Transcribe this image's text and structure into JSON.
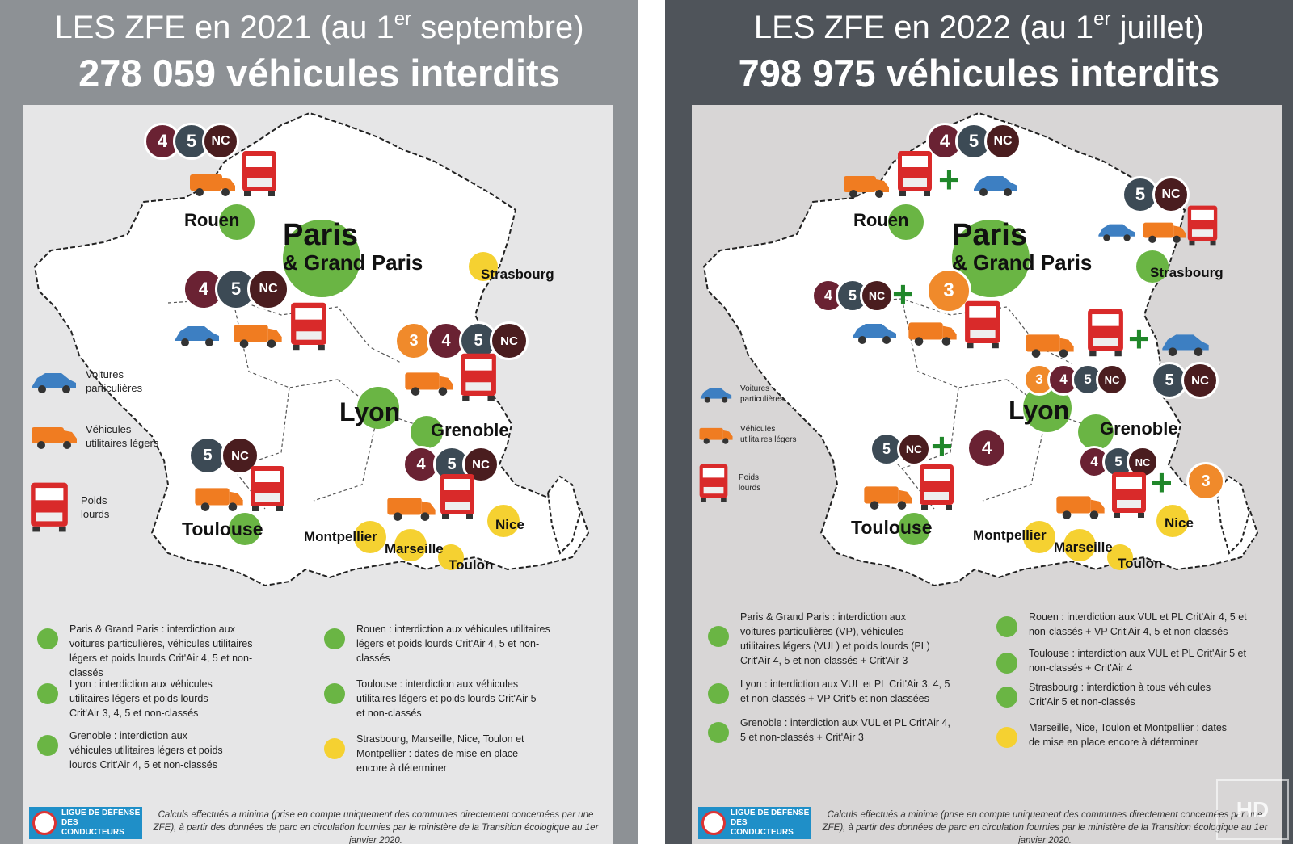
{
  "left": {
    "title_prefix": "LES ZFE en 2021 (au 1",
    "title_sup": "er",
    "title_suffix": " septembre)",
    "subtitle": "278 059 véhicules interdits",
    "cities": {
      "rouen": "Rouen",
      "paris": "Paris",
      "grand_paris": "& Grand Paris",
      "strasbourg": "Strasbourg",
      "lyon": "Lyon",
      "grenoble": "Grenoble",
      "toulouse": "Toulouse",
      "montpellier": "Montpellier",
      "marseille": "Marseille",
      "nice": "Nice",
      "toulon": "Toulon"
    },
    "vehicle_legend": {
      "cars": "Voitures particulières",
      "vans": "Véhicules utilitaires légers",
      "trucks": "Poids lourds"
    },
    "legend": [
      {
        "text": "Paris & Grand Paris : interdiction aux voitures particulières, véhicules utilitaires légers et poids lourds Crit'Air 4, 5 et non-classés",
        "color": "#6ab544"
      },
      {
        "text": "Rouen : interdiction aux véhicules utilitaires légers et poids lourds Crit'Air 4, 5 et non-classés",
        "color": "#6ab544"
      },
      {
        "text": "Lyon : interdiction aux véhicules utilitaires légers et poids lourds Crit'Air 3, 4, 5 et non-classés",
        "color": "#6ab544"
      },
      {
        "text": "Toulouse : interdiction aux véhicules utilitaires légers et poids lourds Crit'Air 5 et non-classés",
        "color": "#6ab544"
      },
      {
        "text": "Grenoble : interdiction aux véhicules utilitaires légers et poids lourds Crit'Air 4, 5 et non-classés",
        "color": "#6ab544"
      },
      {
        "text": "Strasbourg, Marseille, Nice, Toulon et Montpellier : dates de mise en place encore à déterminer",
        "color": "#f5d131"
      }
    ],
    "logo": "Ligue de défense des conducteurs",
    "footnote": "Calculs effectués a minima (prise en compte uniquement des communes directement concernées par une ZFE), à partir des données de parc en circulation fournies par le ministère de la Transition écologique au 1er janvier 2020."
  },
  "right": {
    "title_prefix": "LES ZFE en 2022 (au 1",
    "title_sup": "er",
    "title_suffix": " juillet)",
    "subtitle": "798 975 véhicules interdits",
    "cities": {
      "rouen": "Rouen",
      "paris": "Paris",
      "grand_paris": "& Grand Paris",
      "strasbourg": "Strasbourg",
      "lyon": "Lyon",
      "grenoble": "Grenoble",
      "toulouse": "Toulouse",
      "montpellier": "Montpellier",
      "marseille": "Marseille",
      "nice": "Nice",
      "toulon": "Toulon"
    },
    "vehicle_legend": {
      "cars": "Voitures particulières",
      "vans": "Véhicules utilitaires légers",
      "trucks": "Poids lourds"
    },
    "legend": [
      {
        "text": "Paris & Grand Paris : interdiction aux voitures particulières (VP), véhicules utilitaires légers (VUL) et poids lourds (PL) Crit'Air 4, 5 et non-classés + Crit'Air 3",
        "color": "#6ab544"
      },
      {
        "text": "Rouen : interdiction aux VUL et PL Crit'Air 4, 5 et non-classés + VP Crit'Air 4, 5 et non-classés",
        "color": "#6ab544"
      },
      {
        "text": "Lyon : interdiction aux VUL et PL Crit'Air 3, 4, 5 et non-classés + VP Crit'5 et non classées",
        "color": "#6ab544"
      },
      {
        "text": "Toulouse : interdiction aux VUL et PL Crit'Air 5 et non-classés + Crit'Air 4",
        "color": "#6ab544"
      },
      {
        "text": "Grenoble : interdiction aux VUL et PL Crit'Air 4, 5 et non-classés + Crit'Air 3",
        "color": "#6ab544"
      },
      {
        "text": "Strasbourg : interdiction à tous véhicules Crit'Air 5 et non-classés",
        "color": "#6ab544"
      },
      {
        "text": "Marseille, Nice, Toulon et Montpellier : dates de mise en place encore à déterminer",
        "color": "#f5d131"
      }
    ],
    "logo": "Ligue de défense des conducteurs",
    "footnote": "Calculs effectués a minima (prise en compte uniquement des communes directement concernées par une ZFE), à partir des données de parc en circulation fournies par le ministère de la Transition écologique au 1er janvier 2020.",
    "watermark": "HD"
  },
  "badges": {
    "nc": "NC",
    "five": "5",
    "four": "4",
    "three": "3"
  },
  "plus_sign": "+",
  "colors": {
    "green_zone": "#6ab544",
    "yellow_zone": "#f5d131",
    "car": "#3d7fc2",
    "van": "#f07c21",
    "truck": "#d92a2a"
  }
}
